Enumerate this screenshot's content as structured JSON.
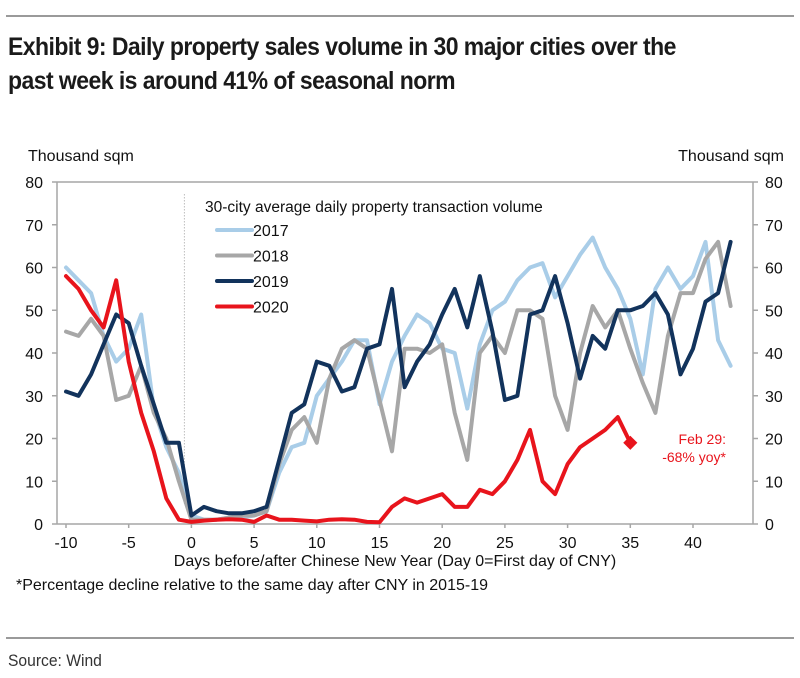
{
  "header": {
    "title": "Exhibit 9: Daily property sales volume in 30 major cities over the past week is around 41% of seasonal norm"
  },
  "footer": {
    "footnote": "*Percentage decline relative to the same day after CNY in 2015-19",
    "source": "Source: Wind"
  },
  "chart_data": {
    "type": "line",
    "title": "Exhibit 9: Daily property sales volume in 30 major cities over the past week is around 41% of seasonal norm",
    "xlabel": "Days before/after Chinese New Year (Day 0=First day of CNY)",
    "ylabel_left": "Thousand sqm",
    "ylabel_right": "Thousand sqm",
    "legend_title": "30-city average daily property transaction volume",
    "legend_position": "top-center",
    "xlim": [
      -10,
      43
    ],
    "ylim": [
      0,
      80
    ],
    "x_ticks": [
      -10,
      -5,
      0,
      5,
      10,
      15,
      20,
      25,
      30,
      35,
      40
    ],
    "y_ticks": [
      0,
      10,
      20,
      30,
      40,
      50,
      60,
      70,
      80
    ],
    "grid": false,
    "reference_line_x": 0,
    "x": [
      -10,
      -9,
      -8,
      -7,
      -6,
      -5,
      -4,
      -3,
      -2,
      -1,
      0,
      1,
      2,
      3,
      4,
      5,
      6,
      7,
      8,
      9,
      10,
      11,
      12,
      13,
      14,
      15,
      16,
      17,
      18,
      19,
      20,
      21,
      22,
      23,
      24,
      25,
      26,
      27,
      28,
      29,
      30,
      31,
      32,
      33,
      34,
      35,
      36,
      37,
      38,
      39,
      40,
      41,
      42,
      43
    ],
    "series": [
      {
        "name": "2017",
        "color": "#a9cde8",
        "values": [
          60,
          57,
          54,
          44,
          38,
          41,
          49,
          27,
          18,
          12,
          2,
          1,
          1,
          1.5,
          1.5,
          2,
          3,
          12,
          18,
          19,
          30,
          34,
          38,
          43,
          43,
          28,
          38,
          44,
          49,
          47,
          41,
          40,
          27,
          42,
          50,
          52,
          57,
          60,
          61,
          53,
          58,
          63,
          67,
          60,
          55,
          48,
          35,
          55,
          60,
          55,
          58,
          66,
          43,
          37
        ]
      },
      {
        "name": "2018",
        "color": "#a7a7a7",
        "values": [
          45,
          44,
          48,
          44,
          29,
          30,
          37,
          26,
          20,
          10,
          1,
          1,
          1,
          1.5,
          2,
          2,
          3,
          14,
          22,
          25,
          19,
          34,
          41,
          43,
          41,
          29,
          17,
          41,
          41,
          40,
          42,
          26,
          15,
          40,
          44,
          40,
          50,
          50,
          48,
          30,
          22,
          40,
          51,
          46,
          50,
          41,
          33,
          26,
          44,
          54,
          54,
          62,
          66,
          51
        ]
      },
      {
        "name": "2019",
        "color": "#12335c",
        "values": [
          31,
          30,
          35,
          42,
          49,
          47,
          37,
          28,
          19,
          19,
          2,
          4,
          3,
          2.5,
          2.5,
          3,
          4,
          15,
          26,
          28,
          38,
          37,
          31,
          32,
          41,
          42,
          55,
          32,
          38,
          42,
          49,
          55,
          46,
          58,
          45,
          29,
          30,
          49,
          50,
          58,
          47,
          34,
          44,
          41,
          50,
          50,
          51,
          54,
          49,
          35,
          41,
          52,
          54,
          66
        ]
      },
      {
        "name": "2020",
        "color": "#e8141c",
        "x": [
          -10,
          -9,
          -8,
          -7,
          -6,
          -5,
          -4,
          -3,
          -2,
          -1,
          0,
          1,
          2,
          3,
          4,
          5,
          6,
          7,
          8,
          9,
          10,
          11,
          12,
          13,
          14,
          15,
          16,
          17,
          18,
          19,
          20,
          21,
          22,
          23,
          24,
          25,
          26,
          27,
          28,
          29,
          30,
          31,
          32,
          33,
          34,
          35
        ],
        "values": [
          58,
          55,
          50,
          46,
          57,
          38,
          26,
          17,
          6,
          1,
          0.5,
          0.8,
          1,
          1.1,
          1,
          0.5,
          2,
          1,
          1,
          0.8,
          0.6,
          1,
          1.1,
          1,
          0.5,
          0.4,
          4,
          6,
          5,
          6,
          7,
          4,
          4,
          8,
          7,
          10,
          15,
          22,
          10,
          7,
          14,
          18,
          20,
          22,
          25,
          19
        ]
      }
    ],
    "annotation": {
      "x": 35,
      "y": 19,
      "marker": "diamond",
      "lines": [
        "Feb 29:",
        "-68% yoy*"
      ]
    }
  }
}
